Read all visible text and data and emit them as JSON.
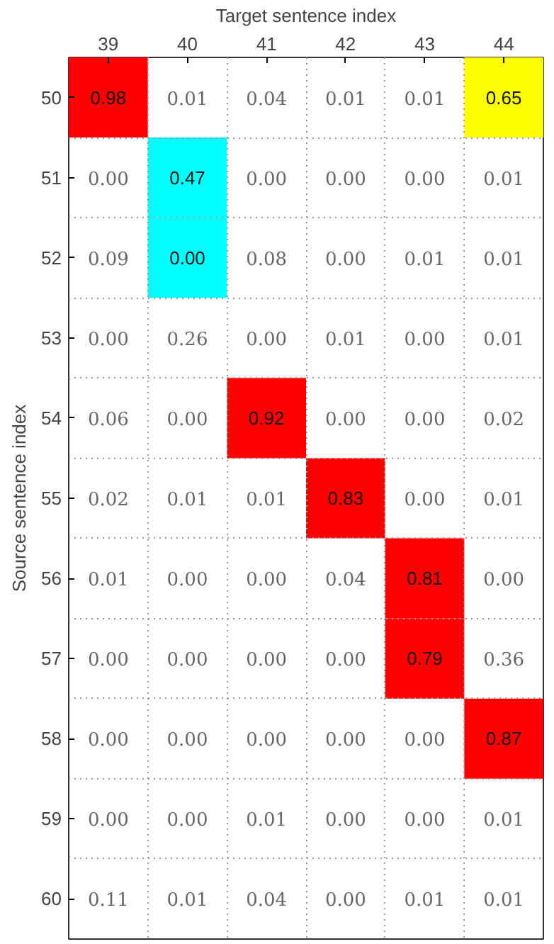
{
  "chart_data": {
    "type": "heatmap",
    "xlabel": "Target sentence index",
    "ylabel": "Source sentence index",
    "categories": [
      "39",
      "40",
      "41",
      "42",
      "43",
      "44"
    ],
    "y_categories": [
      "50",
      "51",
      "52",
      "53",
      "54",
      "55",
      "56",
      "57",
      "58",
      "59",
      "60"
    ],
    "cells": [
      [
        0.98,
        0.01,
        0.04,
        0.01,
        0.01,
        0.65
      ],
      [
        0.0,
        0.47,
        0.0,
        0.0,
        0.0,
        0.01
      ],
      [
        0.09,
        0.0,
        0.08,
        0.0,
        0.01,
        0.01
      ],
      [
        0.0,
        0.26,
        0.0,
        0.01,
        0.0,
        0.01
      ],
      [
        0.06,
        0.0,
        0.92,
        0.0,
        0.0,
        0.02
      ],
      [
        0.02,
        0.01,
        0.01,
        0.83,
        0.0,
        0.01
      ],
      [
        0.01,
        0.0,
        0.0,
        0.04,
        0.81,
        0.0
      ],
      [
        0.0,
        0.0,
        0.0,
        0.0,
        0.79,
        0.36
      ],
      [
        0.0,
        0.0,
        0.0,
        0.0,
        0.0,
        0.87
      ],
      [
        0.0,
        0.0,
        0.01,
        0.0,
        0.0,
        0.01
      ],
      [
        0.11,
        0.01,
        0.04,
        0.0,
        0.01,
        0.01
      ]
    ],
    "colors": [
      [
        "#ff0000",
        null,
        null,
        null,
        null,
        "#ffff00"
      ],
      [
        null,
        "#00ffff",
        null,
        null,
        null,
        null
      ],
      [
        null,
        "#00ffff",
        null,
        null,
        null,
        null
      ],
      [
        null,
        null,
        null,
        null,
        null,
        null
      ],
      [
        null,
        null,
        "#ff0000",
        null,
        null,
        null
      ],
      [
        null,
        null,
        null,
        "#ff0000",
        null,
        null
      ],
      [
        null,
        null,
        null,
        null,
        "#ff0000",
        null
      ],
      [
        null,
        null,
        null,
        null,
        "#ff0000",
        null
      ],
      [
        null,
        null,
        null,
        null,
        null,
        "#ff0000"
      ],
      [
        null,
        null,
        null,
        null,
        null,
        null
      ],
      [
        null,
        null,
        null,
        null,
        null,
        null
      ]
    ],
    "cell_labels": [
      [
        "0.98",
        "0.01",
        "0.04",
        "0.01",
        "0.01",
        "0.65"
      ],
      [
        "0.00",
        "0.47",
        "0.00",
        "0.00",
        "0.00",
        "0.01"
      ],
      [
        "0.09",
        "0.00",
        "0.08",
        "0.00",
        "0.01",
        "0.01"
      ],
      [
        "0.00",
        "0.26",
        "0.00",
        "0.01",
        "0.00",
        "0.01"
      ],
      [
        "0.06",
        "0.00",
        "0.92",
        "0.00",
        "0.00",
        "0.02"
      ],
      [
        "0.02",
        "0.01",
        "0.01",
        "0.83",
        "0.00",
        "0.01"
      ],
      [
        "0.01",
        "0.00",
        "0.00",
        "0.04",
        "0.81",
        "0.00"
      ],
      [
        "0.00",
        "0.00",
        "0.00",
        "0.00",
        "0.79",
        "0.36"
      ],
      [
        "0.00",
        "0.00",
        "0.00",
        "0.00",
        "0.00",
        "0.87"
      ],
      [
        "0.00",
        "0.00",
        "0.01",
        "0.00",
        "0.00",
        "0.01"
      ],
      [
        "0.11",
        "0.01",
        "0.04",
        "0.00",
        "0.01",
        "0.01"
      ]
    ],
    "grid": true
  }
}
